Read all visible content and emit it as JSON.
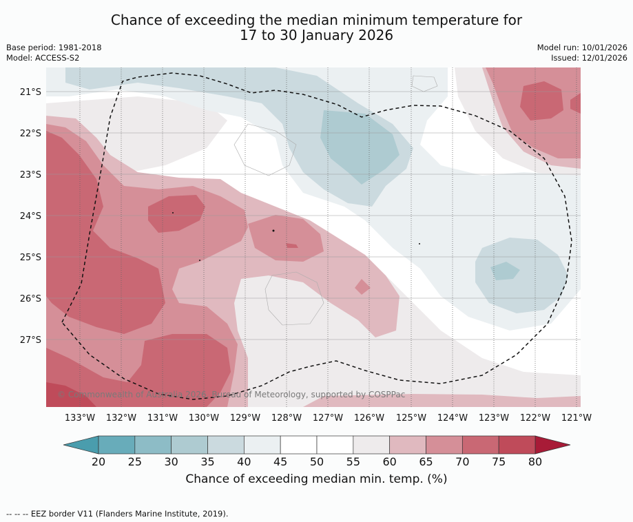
{
  "title": {
    "line1": "Chance of exceeding the median minimum temperature for",
    "line2": "17 to 30 January 2026"
  },
  "meta": {
    "base_period": "Base period: 1981-2018",
    "model": "Model: ACCESS-S2",
    "model_run": "Model run: 10/01/2026",
    "issued": "Issued: 12/01/2026"
  },
  "map": {
    "lat_labels": [
      "21°S",
      "22°S",
      "23°S",
      "24°S",
      "25°S",
      "26°S",
      "27°S"
    ],
    "lon_labels": [
      "133°W",
      "132°W",
      "131°W",
      "130°W",
      "129°W",
      "128°W",
      "127°W",
      "126°W",
      "125°W",
      "124°W",
      "123°W",
      "122°W",
      "121°W"
    ],
    "copyright": "© Commonwealth of Australia 2026, Bureau of Meteorology, supported by COSPPac"
  },
  "colorbar": {
    "ticks": [
      "20",
      "25",
      "30",
      "35",
      "40",
      "45",
      "50",
      "55",
      "60",
      "65",
      "70",
      "75",
      "80"
    ],
    "colors": [
      "#68acba",
      "#8dbcc6",
      "#aecbd1",
      "#cbdadf",
      "#ebf0f2",
      "#ffffff",
      "#ffffff",
      "#eeebec",
      "#e0b9bf",
      "#d58f98",
      "#c96874",
      "#bf4b5a"
    ],
    "under_color": "#4a9dad",
    "over_color": "#a81b37",
    "label": "Chance of exceeding median min. temp. (%)"
  },
  "footer": {
    "legend_line": "--  --  -- EEZ border V11 (Flanders Marine Institute, 2019)."
  }
}
